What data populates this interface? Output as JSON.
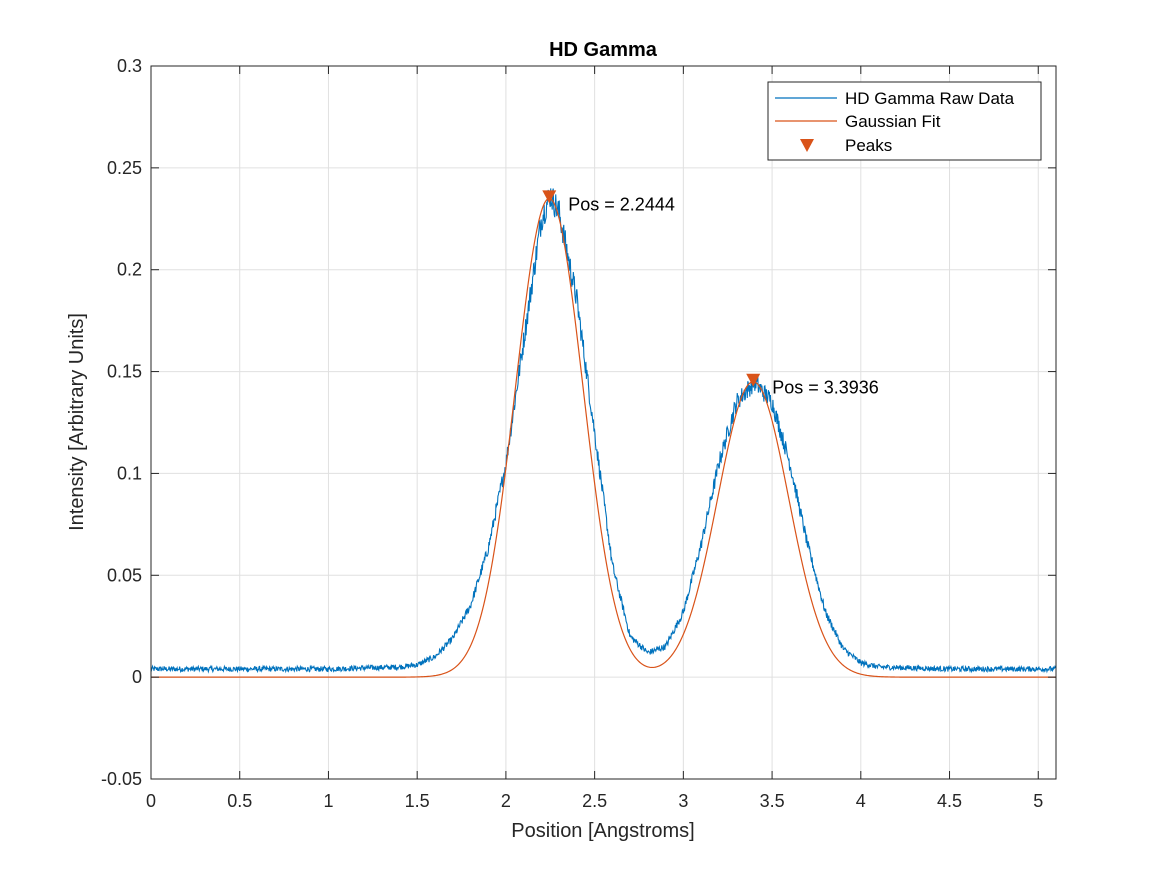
{
  "chart_data": {
    "type": "line",
    "title": "HD Gamma",
    "xlabel": "Position [Angstroms]",
    "ylabel": "Intensity [Arbitrary Units]",
    "xlim": [
      0,
      5.1
    ],
    "ylim": [
      -0.05,
      0.3
    ],
    "xticks": [
      "0",
      "0.5",
      "1",
      "1.5",
      "2",
      "2.5",
      "3",
      "3.5",
      "4",
      "4.5",
      "5"
    ],
    "yticks": [
      "-0.05",
      "0",
      "0.05",
      "0.1",
      "0.15",
      "0.2",
      "0.25",
      "0.3"
    ],
    "grid": true,
    "legend_position": "top-right",
    "colors": {
      "raw": "#0072BD",
      "fit": "#D95319",
      "peaks": "#D95319"
    },
    "series": [
      {
        "name": "HD Gamma Raw Data",
        "kind": "noisy-line",
        "x": [
          0,
          0.5,
          1.0,
          1.4,
          1.5,
          1.6,
          1.7,
          1.8,
          1.9,
          2.0,
          2.1,
          2.2,
          2.25,
          2.3,
          2.4,
          2.5,
          2.6,
          2.7,
          2.8,
          2.9,
          3.0,
          3.1,
          3.2,
          3.3,
          3.4,
          3.5,
          3.6,
          3.7,
          3.8,
          3.9,
          4.0,
          4.1,
          4.5,
          5.1
        ],
        "y": [
          0.004,
          0.004,
          0.004,
          0.005,
          0.006,
          0.01,
          0.019,
          0.035,
          0.063,
          0.105,
          0.165,
          0.225,
          0.237,
          0.228,
          0.185,
          0.12,
          0.055,
          0.02,
          0.012,
          0.015,
          0.032,
          0.065,
          0.105,
          0.135,
          0.145,
          0.135,
          0.105,
          0.065,
          0.032,
          0.014,
          0.007,
          0.005,
          0.004,
          0.004
        ]
      },
      {
        "name": "Gaussian Fit",
        "kind": "gaussian-sum",
        "components": [
          {
            "amplitude": 0.235,
            "center": 2.2444,
            "sigma": 0.19
          },
          {
            "amplitude": 0.145,
            "center": 3.3936,
            "sigma": 0.2
          }
        ]
      },
      {
        "name": "Peaks",
        "kind": "markers",
        "x": [
          2.2444,
          3.3936
        ],
        "y": [
          0.236,
          0.146
        ]
      }
    ],
    "annotations": [
      {
        "text": "Pos = 2.2444",
        "x": 2.2444,
        "y": 0.236
      },
      {
        "text": "Pos = 3.3936",
        "x": 3.3936,
        "y": 0.146
      }
    ]
  }
}
